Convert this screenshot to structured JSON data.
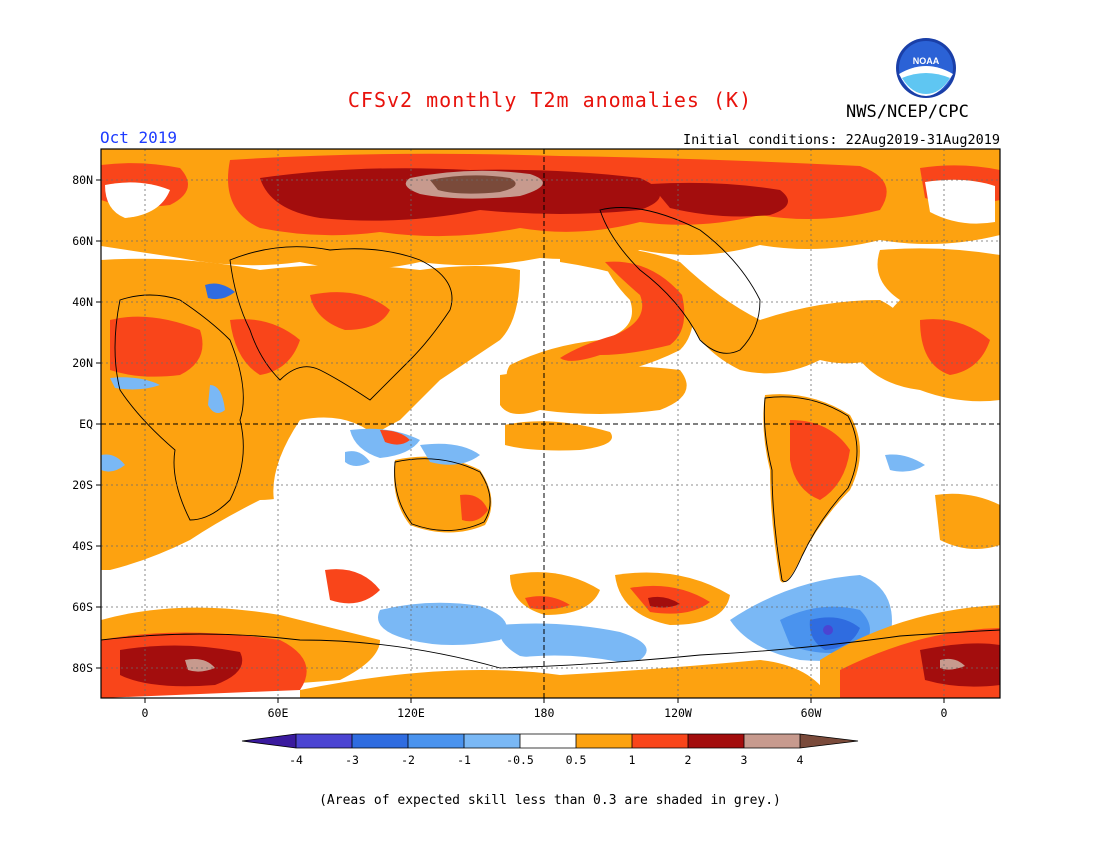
{
  "title": "CFSv2 monthly T2m anomalies (K)",
  "organization": "NWS/NCEP/CPC",
  "logo_text": "NOAA",
  "month": "Oct 2019",
  "initial_conditions": "Initial conditions: 22Aug2019-31Aug2019",
  "lat_labels": [
    "80N",
    "60N",
    "40N",
    "20N",
    "EQ",
    "20S",
    "40S",
    "60S",
    "80S"
  ],
  "lon_labels": [
    "0",
    "60E",
    "120E",
    "180",
    "120W",
    "60W",
    "0"
  ],
  "colorbar": {
    "labels": [
      "-4",
      "-3",
      "-2",
      "-1",
      "-0.5",
      "0.5",
      "1",
      "2",
      "3",
      "4"
    ],
    "colors": [
      "#3a1a9e",
      "#4b44d2",
      "#2f6ce0",
      "#4a93ee",
      "#7ab8f5",
      "#ffffff",
      "#fda210",
      "#f9451a",
      "#a30d0d",
      "#c79a8e",
      "#7a4a3a"
    ]
  },
  "footnote": "(Areas of expected skill less than 0.3 are shaded in grey.)",
  "colors": {
    "title": "#e8120c",
    "month": "#1e3cff",
    "ocean_neutral": "#ffffff"
  }
}
